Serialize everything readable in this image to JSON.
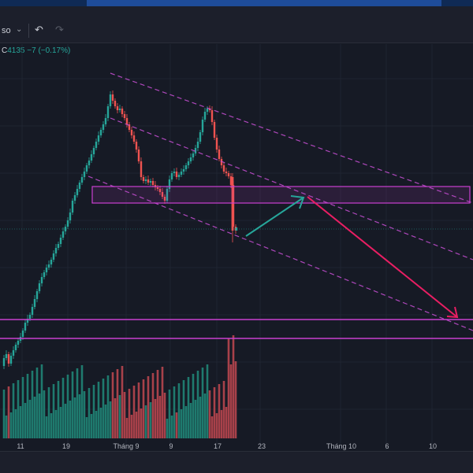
{
  "toolbar": {
    "symbol_fragment": "so",
    "dropdown_icon": "chevron-down-icon",
    "undo_icon": "undo-icon",
    "redo_icon": "redo-icon"
  },
  "legend": {
    "close_label": "C",
    "close_value": "4135",
    "change": "−7",
    "change_pct": "(−0.17%)"
  },
  "colors": {
    "background": "#161a25",
    "up": "#26a69a",
    "down": "#ef5350",
    "volume_up": "#1f7a6e",
    "volume_down": "#a8414a",
    "channel": "#c94fd6",
    "zone": "#c93fd0",
    "arrow_up": "#26a69a",
    "arrow_down": "#e91e63"
  },
  "xaxis": {
    "labels": [
      "11",
      "19",
      "Tháng 9",
      "9",
      "17",
      "23",
      "Tháng 10",
      "6",
      "10"
    ]
  },
  "chart_data": {
    "type": "candlestick",
    "x_axis_labels": [
      "11",
      "19",
      "Tháng 9",
      "9",
      "17",
      "23",
      "Tháng 10",
      "6",
      "10"
    ],
    "last_close": 4135,
    "change": -7,
    "change_pct": -0.17,
    "annotations": [
      "descending dashed channel (3 lines)",
      "horizontal resistance zone",
      "horizontal support band",
      "green projection arrow up",
      "red projection arrow down"
    ]
  }
}
